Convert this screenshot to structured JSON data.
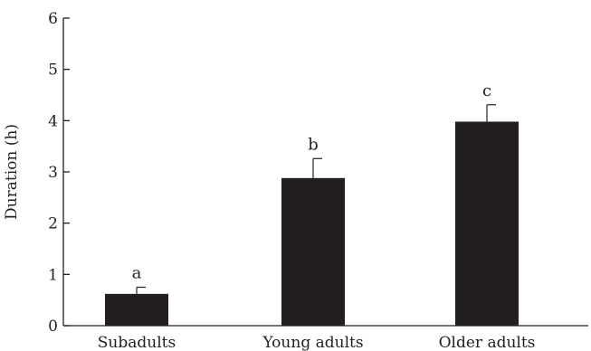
{
  "chart_data": {
    "type": "bar",
    "title": "",
    "xlabel": "",
    "ylabel": "Duration (h)",
    "ylim": [
      0,
      6
    ],
    "yticks": [
      0,
      1,
      2,
      3,
      4,
      5,
      6
    ],
    "grid": false,
    "categories": [
      "Subadults",
      "Young adults",
      "Older adults"
    ],
    "values": [
      0.62,
      2.88,
      3.98
    ],
    "error_upper": [
      0.13,
      0.38,
      0.33
    ],
    "significance_labels": [
      "a",
      "b",
      "c"
    ],
    "bar_color": "#231f20"
  }
}
